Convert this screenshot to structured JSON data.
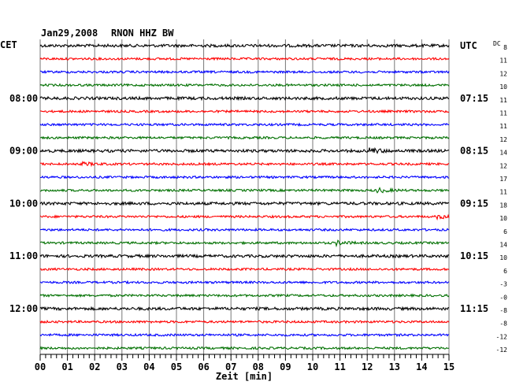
{
  "header": {
    "date": "Jan29,2008",
    "station": "RNON HHZ BW",
    "left_timezone": "CET",
    "right_timezone": "UTC",
    "dc_label": "DC"
  },
  "chart_data": {
    "type": "line",
    "title": "Jan29,2008   RNON HHZ BW",
    "xlabel": "Zeit [min]",
    "ylabel": "",
    "xlim": [
      0,
      15
    ],
    "x_ticks": [
      "00",
      "01",
      "02",
      "03",
      "04",
      "05",
      "06",
      "07",
      "08",
      "09",
      "10",
      "11",
      "12",
      "13",
      "14",
      "15"
    ],
    "trace_count": 24,
    "trace_colors": [
      "#000000",
      "#ff0000",
      "#0000ff",
      "#007000"
    ],
    "left_time_labels": [
      {
        "trace": 4,
        "label": "08:00"
      },
      {
        "trace": 8,
        "label": "09:00"
      },
      {
        "trace": 12,
        "label": "10:00"
      },
      {
        "trace": 16,
        "label": "11:00"
      },
      {
        "trace": 20,
        "label": "12:00"
      }
    ],
    "right_time_labels": [
      {
        "trace": 0,
        "label": "UTC"
      },
      {
        "trace": 4,
        "label": "07:15"
      },
      {
        "trace": 8,
        "label": "08:15"
      },
      {
        "trace": 12,
        "label": "09:15"
      },
      {
        "trace": 16,
        "label": "10:15"
      },
      {
        "trace": 20,
        "label": "11:15"
      }
    ],
    "dc_offsets": [
      "8",
      "11",
      "12",
      "10",
      "11",
      "11",
      "11",
      "12",
      "14",
      "12",
      "17",
      "11",
      "18",
      "10",
      "6",
      "14",
      "10",
      "6",
      "-3",
      "-0",
      "-8",
      "-8",
      "-12",
      "-12"
    ],
    "events": [
      {
        "trace": 8,
        "minute": 12.1,
        "amplitude": 3.2
      },
      {
        "trace": 11,
        "minute": 12.4,
        "amplitude": 2.6
      },
      {
        "trace": 13,
        "minute": 14.6,
        "amplitude": 2.2
      },
      {
        "trace": 15,
        "minute": 10.9,
        "amplitude": 2.4
      },
      {
        "trace": 9,
        "minute": 1.6,
        "amplitude": 1.8
      }
    ],
    "grid": true
  }
}
